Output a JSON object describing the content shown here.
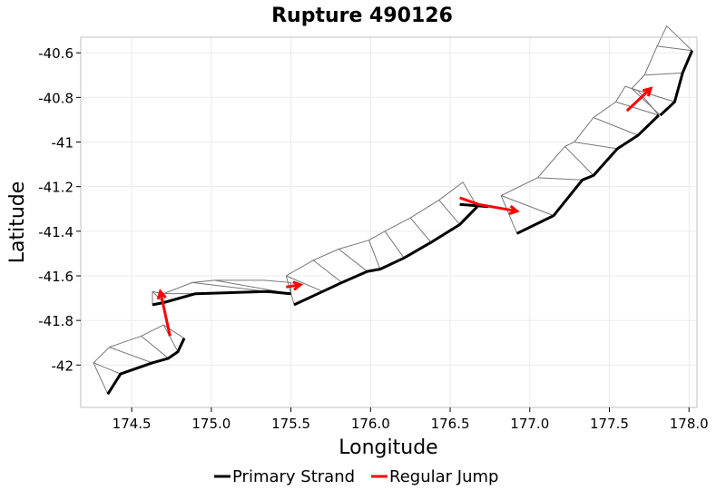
{
  "chart_data": {
    "type": "line",
    "title": "Rupture 490126",
    "xlabel": "Longitude",
    "ylabel": "Latitude",
    "xlim": [
      174.18,
      178.05
    ],
    "ylim": [
      -42.19,
      -40.53
    ],
    "xticks": [
      174.5,
      175.0,
      175.5,
      176.0,
      176.5,
      177.0,
      177.5,
      178.0
    ],
    "xtick_labels": [
      "174.5",
      "175.0",
      "175.5",
      "176.0",
      "176.5",
      "177.0",
      "177.5",
      "178.0"
    ],
    "yticks": [
      -40.6,
      -40.8,
      -41.0,
      -41.2,
      -41.4,
      -41.6,
      -41.8,
      -42.0
    ],
    "ytick_labels": [
      "-40.6",
      "-40.8",
      "-41",
      "-41.2",
      "-41.4",
      "-41.6",
      "-41.8",
      "-42"
    ],
    "grid": true,
    "legend_position": "bottom",
    "legend": [
      {
        "label": "Primary Strand",
        "color": "#000000"
      },
      {
        "label": "Regular Jump",
        "color": "#ff0000"
      }
    ],
    "series": [
      {
        "name": "Primary Strand",
        "color": "#000000",
        "segments": [
          [
            [
              174.35,
              -42.13
            ],
            [
              174.43,
              -42.04
            ],
            [
              174.63,
              -41.99
            ],
            [
              174.73,
              -41.97
            ],
            [
              174.79,
              -41.94
            ],
            [
              174.83,
              -41.88
            ]
          ],
          [
            [
              174.63,
              -41.73
            ],
            [
              174.7,
              -41.72
            ],
            [
              174.9,
              -41.68
            ],
            [
              175.35,
              -41.67
            ],
            [
              175.5,
              -41.68
            ]
          ],
          [
            [
              175.52,
              -41.73
            ],
            [
              175.7,
              -41.67
            ],
            [
              175.82,
              -41.63
            ],
            [
              175.98,
              -41.58
            ],
            [
              176.06,
              -41.57
            ],
            [
              176.21,
              -41.52
            ],
            [
              176.38,
              -41.45
            ],
            [
              176.56,
              -41.37
            ],
            [
              176.67,
              -41.29
            ]
          ],
          [
            [
              176.56,
              -41.28
            ],
            [
              176.74,
              -41.29
            ]
          ],
          [
            [
              176.92,
              -41.41
            ],
            [
              177.15,
              -41.33
            ],
            [
              177.33,
              -41.17
            ],
            [
              177.4,
              -41.15
            ],
            [
              177.55,
              -41.03
            ],
            [
              177.68,
              -40.97
            ],
            [
              177.81,
              -40.88
            ]
          ],
          [
            [
              177.82,
              -40.88
            ],
            [
              177.91,
              -40.82
            ],
            [
              177.96,
              -40.69
            ],
            [
              178.02,
              -40.59
            ]
          ]
        ]
      },
      {
        "name": "Regular Jump",
        "color": "#ff0000",
        "segments": [
          [
            [
              174.74,
              -41.87
            ],
            [
              174.68,
              -41.67
            ]
          ],
          [
            [
              175.47,
              -41.65
            ],
            [
              175.56,
              -41.64
            ]
          ],
          [
            [
              176.56,
              -41.25
            ],
            [
              176.68,
              -41.28
            ],
            [
              176.92,
              -41.31
            ]
          ],
          [
            [
              177.61,
              -40.86
            ],
            [
              177.76,
              -40.76
            ]
          ]
        ]
      },
      {
        "name": "",
        "color": "#777777",
        "type": "polygons",
        "polygons": [
          [
            [
              174.35,
              -42.13
            ],
            [
              174.26,
              -41.99
            ],
            [
              174.36,
              -41.92
            ],
            [
              174.56,
              -41.87
            ],
            [
              174.7,
              -41.82
            ],
            [
              174.83,
              -41.88
            ],
            [
              174.79,
              -41.94
            ],
            [
              174.73,
              -41.97
            ],
            [
              174.63,
              -41.99
            ],
            [
              174.43,
              -42.04
            ]
          ],
          [
            [
              174.63,
              -41.73
            ],
            [
              174.63,
              -41.67
            ],
            [
              174.7,
              -41.68
            ],
            [
              174.88,
              -41.63
            ],
            [
              175.02,
              -41.62
            ],
            [
              175.33,
              -41.62
            ],
            [
              175.5,
              -41.63
            ],
            [
              175.5,
              -41.68
            ],
            [
              175.35,
              -41.67
            ],
            [
              174.9,
              -41.68
            ],
            [
              174.7,
              -41.72
            ]
          ],
          [
            [
              175.52,
              -41.73
            ],
            [
              175.47,
              -41.6
            ],
            [
              175.64,
              -41.53
            ],
            [
              175.8,
              -41.48
            ],
            [
              175.99,
              -41.44
            ],
            [
              176.09,
              -41.4
            ],
            [
              176.25,
              -41.34
            ],
            [
              176.43,
              -41.26
            ],
            [
              176.58,
              -41.18
            ],
            [
              176.67,
              -41.29
            ],
            [
              176.56,
              -41.37
            ],
            [
              176.38,
              -41.45
            ],
            [
              176.21,
              -41.52
            ],
            [
              176.06,
              -41.57
            ],
            [
              175.98,
              -41.58
            ],
            [
              175.82,
              -41.63
            ],
            [
              175.7,
              -41.67
            ]
          ],
          [
            [
              176.92,
              -41.41
            ],
            [
              176.82,
              -41.24
            ],
            [
              177.05,
              -41.16
            ],
            [
              177.22,
              -41.02
            ],
            [
              177.28,
              -41.0
            ],
            [
              177.4,
              -40.89
            ],
            [
              177.54,
              -40.82
            ],
            [
              177.6,
              -40.75
            ],
            [
              177.68,
              -40.77
            ],
            [
              177.81,
              -40.88
            ],
            [
              177.68,
              -40.97
            ],
            [
              177.55,
              -41.03
            ],
            [
              177.4,
              -41.15
            ],
            [
              177.33,
              -41.17
            ],
            [
              177.15,
              -41.33
            ]
          ],
          [
            [
              177.82,
              -40.88
            ],
            [
              177.64,
              -40.76
            ],
            [
              177.72,
              -40.7
            ],
            [
              177.8,
              -40.57
            ],
            [
              177.86,
              -40.48
            ],
            [
              178.02,
              -40.59
            ],
            [
              177.96,
              -40.69
            ],
            [
              177.91,
              -40.82
            ]
          ]
        ]
      }
    ]
  }
}
